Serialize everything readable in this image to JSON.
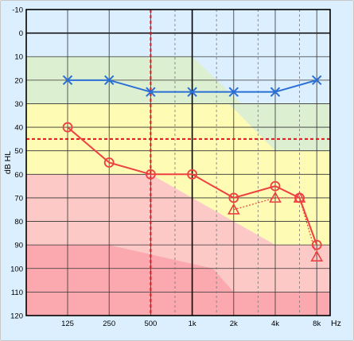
{
  "chart_data": {
    "type": "line",
    "ylabel": "dB HL",
    "xunit": "Hz",
    "x_ticks": [
      "125",
      "250",
      "500",
      "1k",
      "2k",
      "4k",
      "8k"
    ],
    "x_values_hz": [
      125,
      250,
      500,
      1000,
      2000,
      4000,
      8000
    ],
    "x_minor_hz": [
      750,
      1500,
      3000,
      6000
    ],
    "y_ticks": [
      -10,
      0,
      10,
      20,
      30,
      40,
      50,
      60,
      70,
      80,
      90,
      100,
      110,
      120
    ],
    "ylim": [
      -10,
      120
    ],
    "y_inverted": true,
    "x_scale": "log2",
    "colors": {
      "background": "#dcefff",
      "band_normal": "#dcefd0",
      "band_mild": "#fdfbb4",
      "band_moderate": "#fcc9c7",
      "band_severe": "#fba9ae",
      "grid": "#333333",
      "minor_grid": "#777777",
      "series_blue": "#2a6fd6",
      "series_red": "#ee4040",
      "reference_line": "#e0141e"
    },
    "severity_bands": [
      {
        "name": "normal",
        "top": [
          10,
          10,
          10,
          10,
          10,
          10,
          10
        ],
        "bottom": [
          30,
          30,
          30,
          30,
          30,
          30,
          30
        ]
      },
      {
        "name": "mild",
        "top": [
          30,
          30,
          30,
          30,
          30,
          30,
          30
        ],
        "bottom": [
          60,
          60,
          60,
          60,
          60,
          60,
          60
        ]
      },
      {
        "name": "moderate",
        "top": [
          60,
          60,
          60,
          60,
          60,
          60,
          60
        ],
        "bottom": [
          90,
          90,
          90,
          90,
          90,
          90,
          90
        ]
      },
      {
        "name": "severe",
        "top": [
          90,
          90,
          90,
          90,
          90,
          90,
          90
        ],
        "bottom": [
          120,
          120,
          120,
          120,
          120,
          120,
          120
        ]
      }
    ],
    "reference_lines": {
      "vertical_hz": 500,
      "horizontal_db": 45
    },
    "series": [
      {
        "marker": "x",
        "style": "solid",
        "color": "#2a6fd6",
        "x": [
          125,
          250,
          500,
          1000,
          2000,
          4000,
          8000
        ],
        "y": [
          20,
          20,
          25,
          25,
          25,
          25,
          20
        ]
      },
      {
        "marker": "circle",
        "style": "solid",
        "color": "#ee4040",
        "x": [
          125,
          250,
          500,
          1000,
          2000,
          4000,
          6000,
          8000
        ],
        "y": [
          40,
          55,
          60,
          60,
          70,
          65,
          70,
          90
        ]
      },
      {
        "marker": "triangle",
        "style": "dotted",
        "color": "#ee4040",
        "x": [
          2000,
          4000,
          6000,
          8000
        ],
        "y": [
          75,
          70,
          70,
          95
        ]
      }
    ]
  }
}
